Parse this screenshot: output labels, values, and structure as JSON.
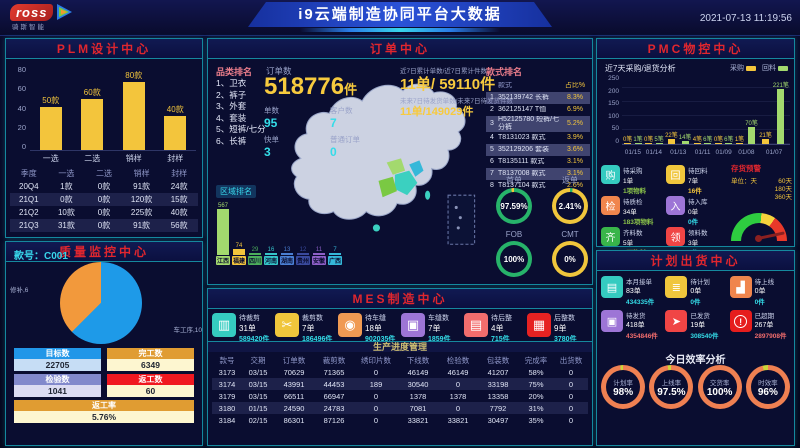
{
  "header": {
    "logo_text": "ross",
    "logo_sub": "骑斯智能",
    "title": "i9云端制造协同平台大数据",
    "timestamp": "2021-07-13 11:19:56"
  },
  "colors": {
    "accent_cyan": "#34dce8",
    "accent_yellow": "#f3c53c",
    "title_red": "#e0262e",
    "panel_border": "#15889e",
    "ring_green": "#27b36a",
    "ring_orange": "#ef8052"
  },
  "plm": {
    "title": "PLM设计中心",
    "table": {
      "headers": [
        "季度",
        "一选",
        "二选",
        "销样",
        "封样"
      ],
      "rows": [
        [
          "20Q4",
          "1款",
          "0款",
          "91款",
          "24款"
        ],
        [
          "21Q1",
          "0款",
          "0款",
          "120款",
          "15款"
        ],
        [
          "21Q2",
          "10款",
          "0款",
          "225款",
          "40款"
        ],
        [
          "21Q3",
          "31款",
          "0款",
          "91款",
          "56款"
        ]
      ]
    }
  },
  "quality": {
    "title": "质量监控中心",
    "style_label": "款号：C001",
    "stats": [
      {
        "label": "目标数",
        "value": "22705",
        "header_color": "#2196e8",
        "value_bg": "#c6ddf5"
      },
      {
        "label": "完工数",
        "value": "6349",
        "header_color": "#e09c32",
        "value_bg": "#fdf6d0"
      },
      {
        "label": "检验数",
        "value": "1041",
        "header_color": "#8289cc",
        "value_bg": "#dcdcf2"
      },
      {
        "label": "返工数",
        "value": "60",
        "header_color": "#f01820",
        "value_bg": "#fdf6d0"
      },
      {
        "label": "返工率",
        "value": "5.76%",
        "header_color": "#e09c32",
        "value_bg": "#fdf6d0",
        "full": true
      }
    ]
  },
  "orders": {
    "title": "订单中心",
    "category_rank": {
      "label": "品类排名",
      "items": [
        "1、卫衣",
        "2、裤子",
        "3、外套",
        "4、套装",
        "5、短裤/七分",
        "6、长裤"
      ]
    },
    "order_count": {
      "label": "订单数",
      "value": "518776",
      "unit": "件"
    },
    "sub_stats": [
      {
        "label": "单数",
        "value": "95"
      },
      {
        "label": "客户数",
        "value": "7"
      },
      {
        "label": "快单",
        "value": "3"
      },
      {
        "label": "普通订单",
        "value": "0"
      }
    ],
    "recent": {
      "label": "近7日累计单数/近7日累计件数",
      "value": "11单/ 59110件"
    },
    "future": {
      "label": "未来7日待发货单数/未来7日待发货件数",
      "value": "11单/149029件"
    },
    "style_rank": {
      "label": "款式排名",
      "headers": [
        "款式",
        "占比%"
      ],
      "rows": [
        [
          "1",
          "352139742 长裤",
          "8.3%"
        ],
        [
          "2",
          "362125147 T恤",
          "6.9%"
        ],
        [
          "3",
          "H52125780 短裤/七分裤",
          "5.2%"
        ],
        [
          "4",
          "T8131023 款式",
          "3.9%"
        ],
        [
          "5",
          "352129206 套装",
          "3.6%"
        ],
        [
          "6",
          "T8135111 款式",
          "3.1%"
        ],
        [
          "7",
          "T8137008 款式",
          "3.1%"
        ],
        [
          "8",
          "T8137104 款式",
          "2.6%"
        ]
      ]
    },
    "region_rank_label": "区域排名"
  },
  "mes": {
    "title": "MES制造中心",
    "subtitle": "生产进度管理",
    "cards": [
      {
        "key": "pending-cut",
        "icon": "fabric-roll-icon",
        "glyph": "▥",
        "color": "#35cbc0",
        "name": "待裁剪",
        "orders": "31单",
        "pieces": "589420件"
      },
      {
        "key": "cut-count",
        "icon": "scissors-icon",
        "glyph": "✂",
        "color": "#f0c63c",
        "name": "裁剪数",
        "orders": "7单",
        "pieces": "186496件"
      },
      {
        "key": "pending-sew",
        "icon": "fabric-icon",
        "glyph": "◉",
        "color": "#f09a53",
        "name": "待车缝",
        "orders": "18单",
        "pieces": "902035件"
      },
      {
        "key": "sew-count",
        "icon": "sewing-machine-icon",
        "glyph": "▣",
        "color": "#9d75d6",
        "name": "车缝数",
        "orders": "7单",
        "pieces": "1859件"
      },
      {
        "key": "pending-finish",
        "icon": "box-icon",
        "glyph": "▤",
        "color": "#f26d6d",
        "name": "待后整",
        "orders": "4单",
        "pieces": "715件"
      },
      {
        "key": "finish-count",
        "icon": "iron-icon",
        "glyph": "▦",
        "color": "#e62222",
        "name": "后整数",
        "orders": "9单",
        "pieces": "3780件"
      }
    ],
    "table": {
      "headers": [
        "款号",
        "交期",
        "订单数",
        "裁剪数",
        "绣印片数",
        "下线数",
        "检验数",
        "包装数",
        "完成率",
        "出货数"
      ],
      "rows": [
        [
          "3173",
          "03/15",
          "70629",
          "71365",
          "0",
          "46149",
          "46149",
          "41207",
          "58%",
          "0"
        ],
        [
          "3174",
          "03/15",
          "43991",
          "44453",
          "189",
          "30540",
          "0",
          "33198",
          "75%",
          "0"
        ],
        [
          "3179",
          "03/15",
          "66511",
          "66947",
          "0",
          "1378",
          "1378",
          "13358",
          "20%",
          "0"
        ],
        [
          "3180",
          "01/15",
          "24590",
          "24783",
          "0",
          "7081",
          "0",
          "7792",
          "31%",
          "0"
        ],
        [
          "3184",
          "02/15",
          "86301",
          "87126",
          "0",
          "33821",
          "33821",
          "30497",
          "35%",
          "0"
        ]
      ]
    }
  },
  "pmc": {
    "title": "PMC物控中心",
    "subtitle": "近7天采购/退货分析",
    "legend": [
      {
        "label": "采购",
        "color": "#f3c53c"
      },
      {
        "label": "回料",
        "color": "#a3d96e"
      }
    ],
    "cards": [
      {
        "key": "pending-purchase",
        "icon": "cart-icon",
        "glyph": "购",
        "color": "#35cbc0",
        "name": "待采购",
        "orders": "1单",
        "pieces": "1项物料",
        "pieces_color": "#8bc34a"
      },
      {
        "key": "pending-return",
        "icon": "layers-icon",
        "glyph": "回",
        "color": "#f0c63c",
        "name": "待回料",
        "orders": "7单",
        "pieces": "16件",
        "pieces_color": "#f3c53c"
      },
      {
        "key": "pending-qc",
        "icon": "shield-icon",
        "glyph": "检",
        "color": "#f0854d",
        "name": "待质检",
        "orders": "34单",
        "pieces": "183项物料",
        "pieces_color": "#8bc34a"
      },
      {
        "key": "pending-instock",
        "icon": "arrow-in-icon",
        "glyph": "入",
        "color": "#9d75d6",
        "name": "待入库",
        "orders": "0单",
        "pieces": "0件",
        "pieces_color": "#34dce8"
      },
      {
        "key": "material-ready",
        "icon": "circle-qi-icon",
        "glyph": "齐",
        "color": "#39b54a",
        "name": "齐料数",
        "orders": "5单",
        "pieces": "9项物料",
        "pieces_color": "#f3c53c"
      },
      {
        "key": "material-issued",
        "icon": "cube-icon",
        "glyph": "领",
        "color": "#f04545",
        "name": "领料数",
        "orders": "3单",
        "pieces": "7件",
        "pieces_color": "#34dce8"
      }
    ],
    "gauge": {
      "title": "存货预警",
      "unit": "单位：天",
      "ticks": [
        "60天",
        "180天",
        "360天"
      ]
    }
  },
  "shipment": {
    "title": "计划出货中心",
    "cards": [
      {
        "key": "month-orders",
        "icon": "document-check-icon",
        "glyph": "▤",
        "color": "#35cbc0",
        "name": "本月接单",
        "orders": "83单",
        "pieces": "434335件",
        "pieces_color": "#34dce8"
      },
      {
        "key": "pending-plan",
        "icon": "list-icon",
        "glyph": "≣",
        "color": "#f0c63c",
        "name": "待计划",
        "orders": "0单",
        "pieces": "0件",
        "pieces_color": "#34dce8"
      },
      {
        "key": "pending-online",
        "icon": "bar-chart-icon",
        "glyph": "▟",
        "color": "#f0854d",
        "name": "待上线",
        "orders": "0单",
        "pieces": "0件",
        "pieces_color": "#34dce8"
      },
      {
        "key": "pending-ship",
        "icon": "box-icon",
        "glyph": "▣",
        "color": "#9d75d6",
        "name": "待发货",
        "orders": "418单",
        "pieces": "4354846件",
        "pieces_color": "#f26d6d"
      },
      {
        "key": "shipped",
        "icon": "truck-icon",
        "glyph": "➤",
        "color": "#f04545",
        "name": "已发货",
        "orders": "19单",
        "pieces": "308540件",
        "pieces_color": "#34dce8"
      },
      {
        "key": "overdue",
        "icon": "warning-icon",
        "glyph": "!",
        "circle": true,
        "color": "#e61d1d",
        "name": "已超期",
        "orders": "267单",
        "pieces": "2897908件",
        "pieces_color": "#f26d6d"
      }
    ]
  },
  "efficiency": {
    "title": "今日效率分析"
  },
  "chart_data": [
    {
      "type": "bar",
      "title": "PLM设计中心",
      "categories": [
        "一选",
        "二选",
        "销样",
        "封样"
      ],
      "values": [
        50,
        60,
        80,
        40
      ],
      "labels": [
        "50款",
        "60款",
        "80款",
        "40款"
      ],
      "xlabel": "",
      "ylabel": "",
      "ylim": [
        0,
        80
      ],
      "yticks": [
        0,
        20,
        40,
        60,
        80
      ],
      "bar_color": "#f3c53c"
    },
    {
      "type": "pie",
      "title": "质量监控中心 款号C001",
      "slices": [
        {
          "label": "车工序,10",
          "value": 10,
          "color": "#1e9ae8"
        },
        {
          "label": "修补,6",
          "value": 6,
          "color": "#f2993c"
        }
      ]
    },
    {
      "type": "bar",
      "title": "区域排名",
      "categories": [
        "江西",
        "福建",
        "四川",
        "河南",
        "湖南",
        "贵州",
        "安徽",
        "广西"
      ],
      "values": [
        567,
        74,
        29,
        16,
        13,
        12,
        11,
        7
      ],
      "colors": [
        "#a3d96e",
        "#f3c53c",
        "#4cae5b",
        "#35c5c9",
        "#4a7fd4",
        "#3a4a9e",
        "#8e5fc8",
        "#35b8d9"
      ]
    },
    {
      "type": "bar",
      "title": "近7天采购/退货分析",
      "categories": [
        "01/15",
        "01/14",
        "01/13",
        "01/11",
        "01/09",
        "01/08",
        "01/07"
      ],
      "ylim": [
        0,
        250
      ],
      "yticks": [
        0,
        50,
        100,
        150,
        200,
        250
      ],
      "legend_position": "top-right",
      "series": [
        {
          "name": "采购",
          "color": "#f3c53c",
          "values": [
            0,
            0,
            22,
            4,
            0,
            1,
            21
          ],
          "labels": [
            "0笔",
            "0笔",
            "22笔",
            "4笔",
            "0笔",
            "1笔",
            "21笔"
          ]
        },
        {
          "name": "回料",
          "color": "#a3d96e",
          "values": [
            1,
            5,
            14,
            6,
            6,
            70,
            221
          ],
          "labels": [
            "1笔",
            "5笔",
            "14笔",
            "6笔",
            "6笔",
            "70笔",
            "221笔"
          ]
        }
      ]
    },
    {
      "type": "pie",
      "title": "订单比例环图",
      "items": [
        {
          "label": "首单",
          "text": "97.59%",
          "pct": 97.59
        },
        {
          "label": "返单",
          "text": "2.41%",
          "pct": 2.41
        },
        {
          "label": "FOB",
          "text": "100%",
          "pct": 100
        },
        {
          "label": "CMT",
          "text": "0%",
          "pct": 0
        }
      ]
    },
    {
      "type": "pie",
      "title": "今日效率分析",
      "items": [
        {
          "label": "计划率",
          "text": "98%",
          "pct": 98
        },
        {
          "label": "上线率",
          "text": "97.5%",
          "pct": 97.5
        },
        {
          "label": "交货率",
          "text": "100%",
          "pct": 100
        },
        {
          "label": "时效率",
          "text": "96%",
          "pct": 96
        }
      ]
    }
  ]
}
